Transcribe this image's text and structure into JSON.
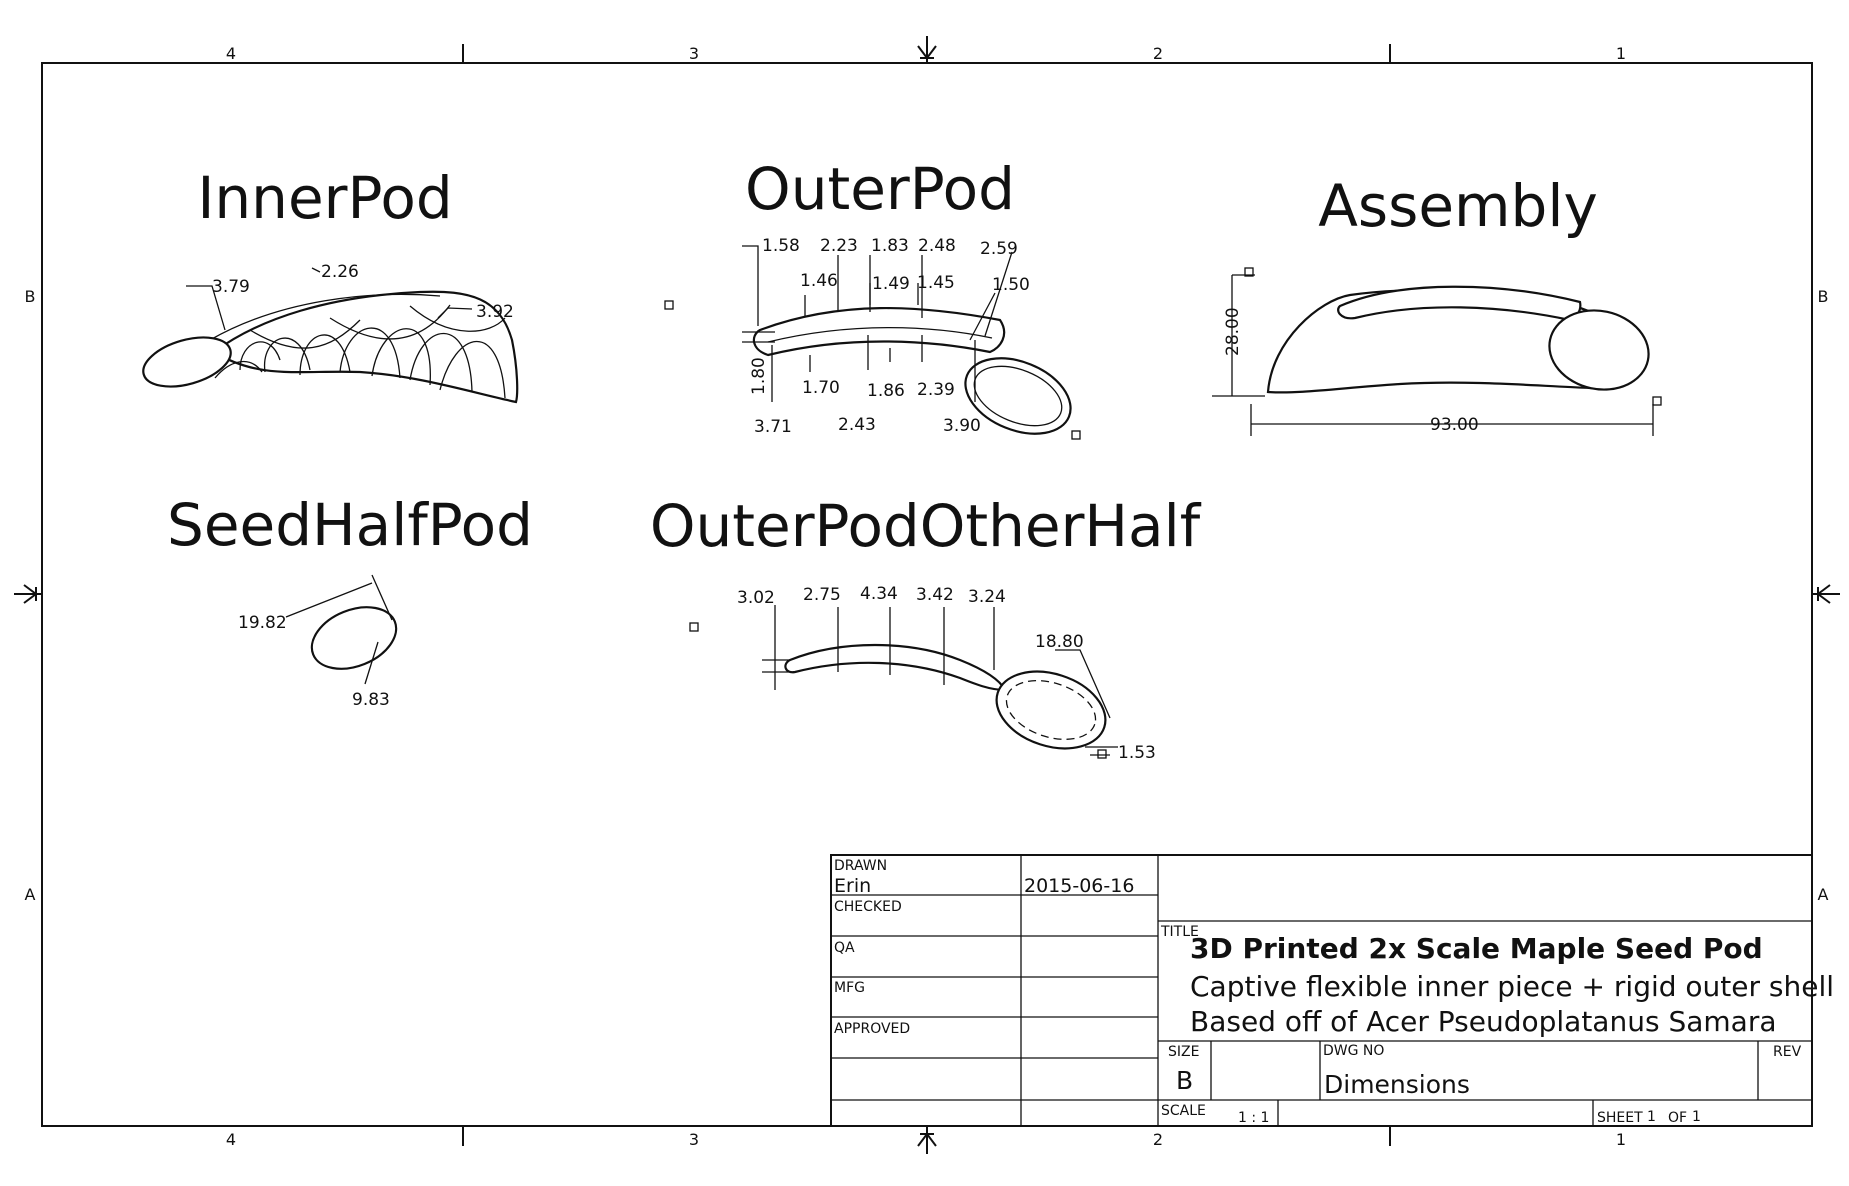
{
  "zones": {
    "columns": [
      "4",
      "3",
      "2",
      "1"
    ],
    "rows": [
      "B",
      "A"
    ]
  },
  "views": {
    "inner_pod": {
      "title": "InnerPod",
      "dimensions": [
        "3.79",
        "2.26",
        "3.92"
      ]
    },
    "outer_pod": {
      "title": "OuterPod",
      "dimensions": [
        "1.58",
        "2.23",
        "1.83",
        "2.48",
        "2.59",
        "1.46",
        "1.49",
        "1.45",
        "1.50",
        "1.80",
        "1.70",
        "1.86",
        "2.39",
        "3.71",
        "2.43",
        "3.90"
      ]
    },
    "assembly": {
      "title": "Assembly",
      "dimensions": [
        "28.00",
        "93.00"
      ]
    },
    "seed_half_pod": {
      "title": "SeedHalfPod",
      "dimensions": [
        "19.82",
        "9.83"
      ]
    },
    "outer_pod_other_half": {
      "title": "OuterPodOtherHalf",
      "dimensions": [
        "3.02",
        "2.75",
        "4.34",
        "3.42",
        "3.24",
        "18.80",
        "1.53"
      ]
    }
  },
  "title_block": {
    "drawn_label": "DRAWN",
    "drawn_by": "Erin",
    "drawn_date": "2015-06-16",
    "checked_label": "CHECKED",
    "qa_label": "QA",
    "mfg_label": "MFG",
    "approved_label": "APPROVED",
    "title_label": "TITLE",
    "title": "3D Printed 2x Scale Maple Seed Pod",
    "subtitle_1": "Captive flexible inner piece + rigid outer shell",
    "subtitle_2": "Based off of Acer Pseudoplatanus Samara",
    "size_label": "SIZE",
    "size": "B",
    "dwg_no_label": "DWG NO",
    "dwg_no": "Dimensions",
    "rev_label": "REV",
    "scale_label": "SCALE",
    "scale": "1 : 1",
    "sheet_label": "SHEET",
    "sheet_num": "1",
    "of_label": "OF",
    "sheet_total": "1"
  }
}
